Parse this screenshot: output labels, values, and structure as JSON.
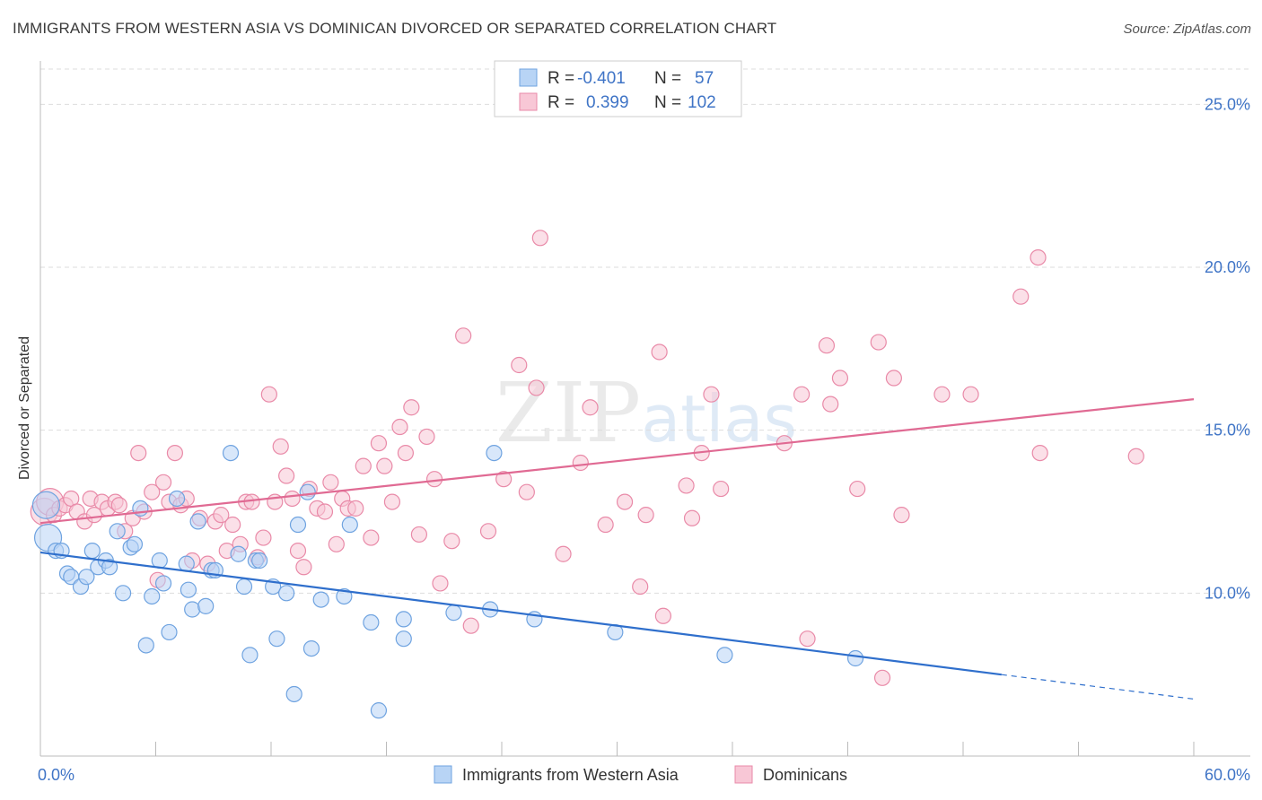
{
  "title": "IMMIGRANTS FROM WESTERN ASIA VS DOMINICAN DIVORCED OR SEPARATED CORRELATION CHART",
  "source": "Source: ZipAtlas.com",
  "watermark": "ZIPatlas",
  "colors": {
    "blue_fill": "#b8d4f5",
    "blue_stroke": "#6fa3e0",
    "blue_line": "#2f6fcc",
    "pink_fill": "#f8c7d6",
    "pink_stroke": "#e98aa8",
    "pink_line": "#e06a93",
    "axis_value": "#3f74c6",
    "grid": "#dddddd"
  },
  "legend": {
    "rows": [
      {
        "r_label": "R =",
        "r_value": "-0.401",
        "n_label": "N =",
        "n_value": "57"
      },
      {
        "r_label": "R =",
        "r_value": "0.399",
        "n_label": "N =",
        "n_value": "102"
      }
    ]
  },
  "chart_data": {
    "type": "scatter",
    "title": "IMMIGRANTS FROM WESTERN ASIA VS DOMINICAN DIVORCED OR SEPARATED CORRELATION CHART",
    "xlabel": "",
    "ylabel": "Divorced or Separated",
    "xlim": [
      0,
      60
    ],
    "ylim": [
      5,
      26
    ],
    "x_tick_labels": [
      "0.0%",
      "60.0%"
    ],
    "y_ticks": [
      10,
      15,
      20,
      25
    ],
    "y_tick_labels": [
      "10.0%",
      "15.0%",
      "20.0%",
      "25.0%"
    ],
    "grid": true,
    "legend_position": "top-center",
    "series": [
      {
        "name": "Immigrants from Western Asia",
        "color": "#6fa3e0",
        "r": -0.401,
        "n": 57,
        "trend": {
          "x1": 0,
          "y1": 11.25,
          "x2": 50,
          "y2": 7.5,
          "dash_to_x": 60,
          "dash_to_y": 6.75
        },
        "points": [
          [
            0.3,
            12.7
          ],
          [
            0.4,
            11.7
          ],
          [
            0.8,
            11.3
          ],
          [
            1.1,
            11.3
          ],
          [
            1.4,
            10.6
          ],
          [
            1.6,
            10.5
          ],
          [
            2.1,
            10.2
          ],
          [
            2.4,
            10.5
          ],
          [
            2.7,
            11.3
          ],
          [
            3.0,
            10.8
          ],
          [
            3.4,
            11.0
          ],
          [
            3.6,
            10.8
          ],
          [
            4.0,
            11.9
          ],
          [
            4.3,
            10.0
          ],
          [
            4.7,
            11.4
          ],
          [
            4.9,
            11.5
          ],
          [
            5.2,
            12.6
          ],
          [
            5.5,
            8.4
          ],
          [
            5.8,
            9.9
          ],
          [
            6.2,
            11.0
          ],
          [
            6.4,
            10.3
          ],
          [
            6.7,
            8.8
          ],
          [
            7.1,
            12.9
          ],
          [
            7.6,
            10.9
          ],
          [
            7.7,
            10.1
          ],
          [
            7.9,
            9.5
          ],
          [
            8.2,
            12.2
          ],
          [
            8.6,
            9.6
          ],
          [
            8.9,
            10.7
          ],
          [
            9.1,
            10.7
          ],
          [
            9.9,
            14.3
          ],
          [
            10.3,
            11.2
          ],
          [
            10.6,
            10.2
          ],
          [
            10.9,
            8.1
          ],
          [
            11.2,
            11.0
          ],
          [
            11.4,
            11.0
          ],
          [
            12.1,
            10.2
          ],
          [
            12.3,
            8.6
          ],
          [
            12.8,
            10.0
          ],
          [
            13.2,
            6.9
          ],
          [
            13.4,
            12.1
          ],
          [
            13.9,
            13.1
          ],
          [
            14.1,
            8.3
          ],
          [
            14.6,
            9.8
          ],
          [
            15.8,
            9.9
          ],
          [
            16.1,
            12.1
          ],
          [
            17.2,
            9.1
          ],
          [
            17.6,
            6.4
          ],
          [
            18.9,
            9.2
          ],
          [
            18.9,
            8.6
          ],
          [
            21.5,
            9.4
          ],
          [
            23.4,
            9.5
          ],
          [
            23.6,
            14.3
          ],
          [
            25.7,
            9.2
          ],
          [
            29.9,
            8.8
          ],
          [
            35.6,
            8.1
          ],
          [
            42.4,
            8.0
          ]
        ]
      },
      {
        "name": "Dominicans",
        "color": "#e98aa8",
        "r": 0.399,
        "n": 102,
        "trend": {
          "x1": 0,
          "y1": 12.15,
          "x2": 60,
          "y2": 15.95
        },
        "points": [
          [
            0.2,
            12.5
          ],
          [
            0.5,
            12.8
          ],
          [
            0.7,
            12.4
          ],
          [
            1.0,
            12.6
          ],
          [
            1.3,
            12.7
          ],
          [
            1.6,
            12.9
          ],
          [
            1.9,
            12.5
          ],
          [
            2.3,
            12.2
          ],
          [
            2.6,
            12.9
          ],
          [
            2.8,
            12.4
          ],
          [
            3.2,
            12.8
          ],
          [
            3.5,
            12.6
          ],
          [
            3.9,
            12.8
          ],
          [
            4.1,
            12.7
          ],
          [
            4.4,
            11.9
          ],
          [
            4.8,
            12.3
          ],
          [
            5.1,
            14.3
          ],
          [
            5.4,
            12.5
          ],
          [
            5.8,
            13.1
          ],
          [
            6.1,
            10.4
          ],
          [
            6.4,
            13.4
          ],
          [
            6.7,
            12.8
          ],
          [
            7.0,
            14.3
          ],
          [
            7.3,
            12.7
          ],
          [
            7.6,
            12.9
          ],
          [
            7.9,
            11.0
          ],
          [
            8.3,
            12.3
          ],
          [
            8.7,
            10.9
          ],
          [
            9.1,
            12.2
          ],
          [
            9.4,
            12.4
          ],
          [
            9.7,
            11.3
          ],
          [
            10.0,
            12.1
          ],
          [
            10.4,
            11.5
          ],
          [
            10.7,
            12.8
          ],
          [
            11.0,
            12.8
          ],
          [
            11.3,
            11.1
          ],
          [
            11.6,
            11.7
          ],
          [
            11.9,
            16.1
          ],
          [
            12.2,
            12.8
          ],
          [
            12.5,
            14.5
          ],
          [
            12.8,
            13.6
          ],
          [
            13.1,
            12.9
          ],
          [
            13.4,
            11.3
          ],
          [
            13.7,
            10.8
          ],
          [
            14.0,
            13.2
          ],
          [
            14.4,
            12.6
          ],
          [
            14.8,
            12.5
          ],
          [
            15.1,
            13.4
          ],
          [
            15.4,
            11.5
          ],
          [
            15.7,
            12.9
          ],
          [
            16.0,
            12.6
          ],
          [
            16.4,
            12.6
          ],
          [
            16.8,
            13.9
          ],
          [
            17.2,
            11.7
          ],
          [
            17.6,
            14.6
          ],
          [
            17.9,
            13.9
          ],
          [
            18.3,
            12.8
          ],
          [
            18.7,
            15.1
          ],
          [
            19.0,
            14.3
          ],
          [
            19.3,
            15.7
          ],
          [
            19.7,
            11.8
          ],
          [
            20.1,
            14.8
          ],
          [
            20.5,
            13.5
          ],
          [
            20.8,
            10.3
          ],
          [
            21.4,
            11.6
          ],
          [
            22.0,
            17.9
          ],
          [
            22.4,
            9.0
          ],
          [
            23.3,
            11.9
          ],
          [
            24.1,
            13.5
          ],
          [
            24.9,
            17.0
          ],
          [
            25.3,
            13.1
          ],
          [
            25.8,
            16.3
          ],
          [
            26.0,
            20.9
          ],
          [
            27.2,
            11.2
          ],
          [
            28.1,
            14.0
          ],
          [
            28.6,
            15.7
          ],
          [
            29.4,
            12.1
          ],
          [
            30.4,
            12.8
          ],
          [
            31.2,
            10.2
          ],
          [
            31.5,
            12.4
          ],
          [
            32.2,
            17.4
          ],
          [
            32.4,
            9.3
          ],
          [
            33.6,
            13.3
          ],
          [
            33.9,
            12.3
          ],
          [
            34.4,
            14.3
          ],
          [
            34.9,
            16.1
          ],
          [
            35.4,
            13.2
          ],
          [
            38.7,
            14.6
          ],
          [
            39.6,
            16.1
          ],
          [
            39.9,
            8.6
          ],
          [
            40.9,
            17.6
          ],
          [
            41.1,
            15.8
          ],
          [
            41.6,
            16.6
          ],
          [
            42.5,
            13.2
          ],
          [
            43.6,
            17.7
          ],
          [
            44.4,
            16.6
          ],
          [
            44.8,
            12.4
          ],
          [
            46.9,
            16.1
          ],
          [
            48.4,
            16.1
          ],
          [
            51.0,
            19.1
          ],
          [
            51.9,
            20.3
          ],
          [
            52.0,
            14.3
          ],
          [
            57.0,
            14.2
          ],
          [
            43.8,
            7.4
          ]
        ]
      }
    ]
  },
  "bottom_legend": [
    "Immigrants from Western Asia",
    "Dominicans"
  ]
}
